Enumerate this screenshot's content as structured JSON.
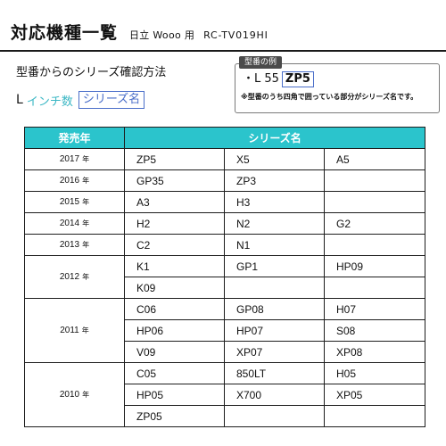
{
  "header": {
    "title": "対応機種一覧",
    "brand": "日立 Wooo 用",
    "model": "RC-TV019HI"
  },
  "guide": {
    "method_title": "型番からのシリーズ確認方法",
    "letter": "L",
    "inch_label": "インチ数",
    "series_label": "シリーズ名"
  },
  "example": {
    "tag": "型番の例",
    "bullet": "・L 55",
    "highlight": "ZP5",
    "note": "※型番のうち四角で囲っている部分がシリーズ名です。"
  },
  "table": {
    "headers": {
      "year": "発売年",
      "series": "シリーズ名"
    },
    "year_unit": "年",
    "groups": [
      {
        "year": "2017",
        "rows": [
          [
            "ZP5",
            "X5",
            "A5"
          ]
        ]
      },
      {
        "year": "2016",
        "rows": [
          [
            "GP35",
            "ZP3",
            ""
          ]
        ]
      },
      {
        "year": "2015",
        "rows": [
          [
            "A3",
            "H3",
            ""
          ]
        ]
      },
      {
        "year": "2014",
        "rows": [
          [
            "H2",
            "N2",
            "G2"
          ]
        ]
      },
      {
        "year": "2013",
        "rows": [
          [
            "C2",
            "N1",
            ""
          ]
        ]
      },
      {
        "year": "2012",
        "rows": [
          [
            "K1",
            "GP1",
            "HP09"
          ],
          [
            "K09",
            "",
            ""
          ]
        ]
      },
      {
        "year": "2011",
        "rows": [
          [
            "C06",
            "GP08",
            "H07"
          ],
          [
            "HP06",
            "HP07",
            "S08"
          ],
          [
            "V09",
            "XP07",
            "XP08"
          ]
        ]
      },
      {
        "year": "2010",
        "rows": [
          [
            "C05",
            "850LT",
            "H05"
          ],
          [
            "HP05",
            "X700",
            "XP05"
          ],
          [
            "ZP05",
            "",
            ""
          ]
        ]
      }
    ]
  }
}
